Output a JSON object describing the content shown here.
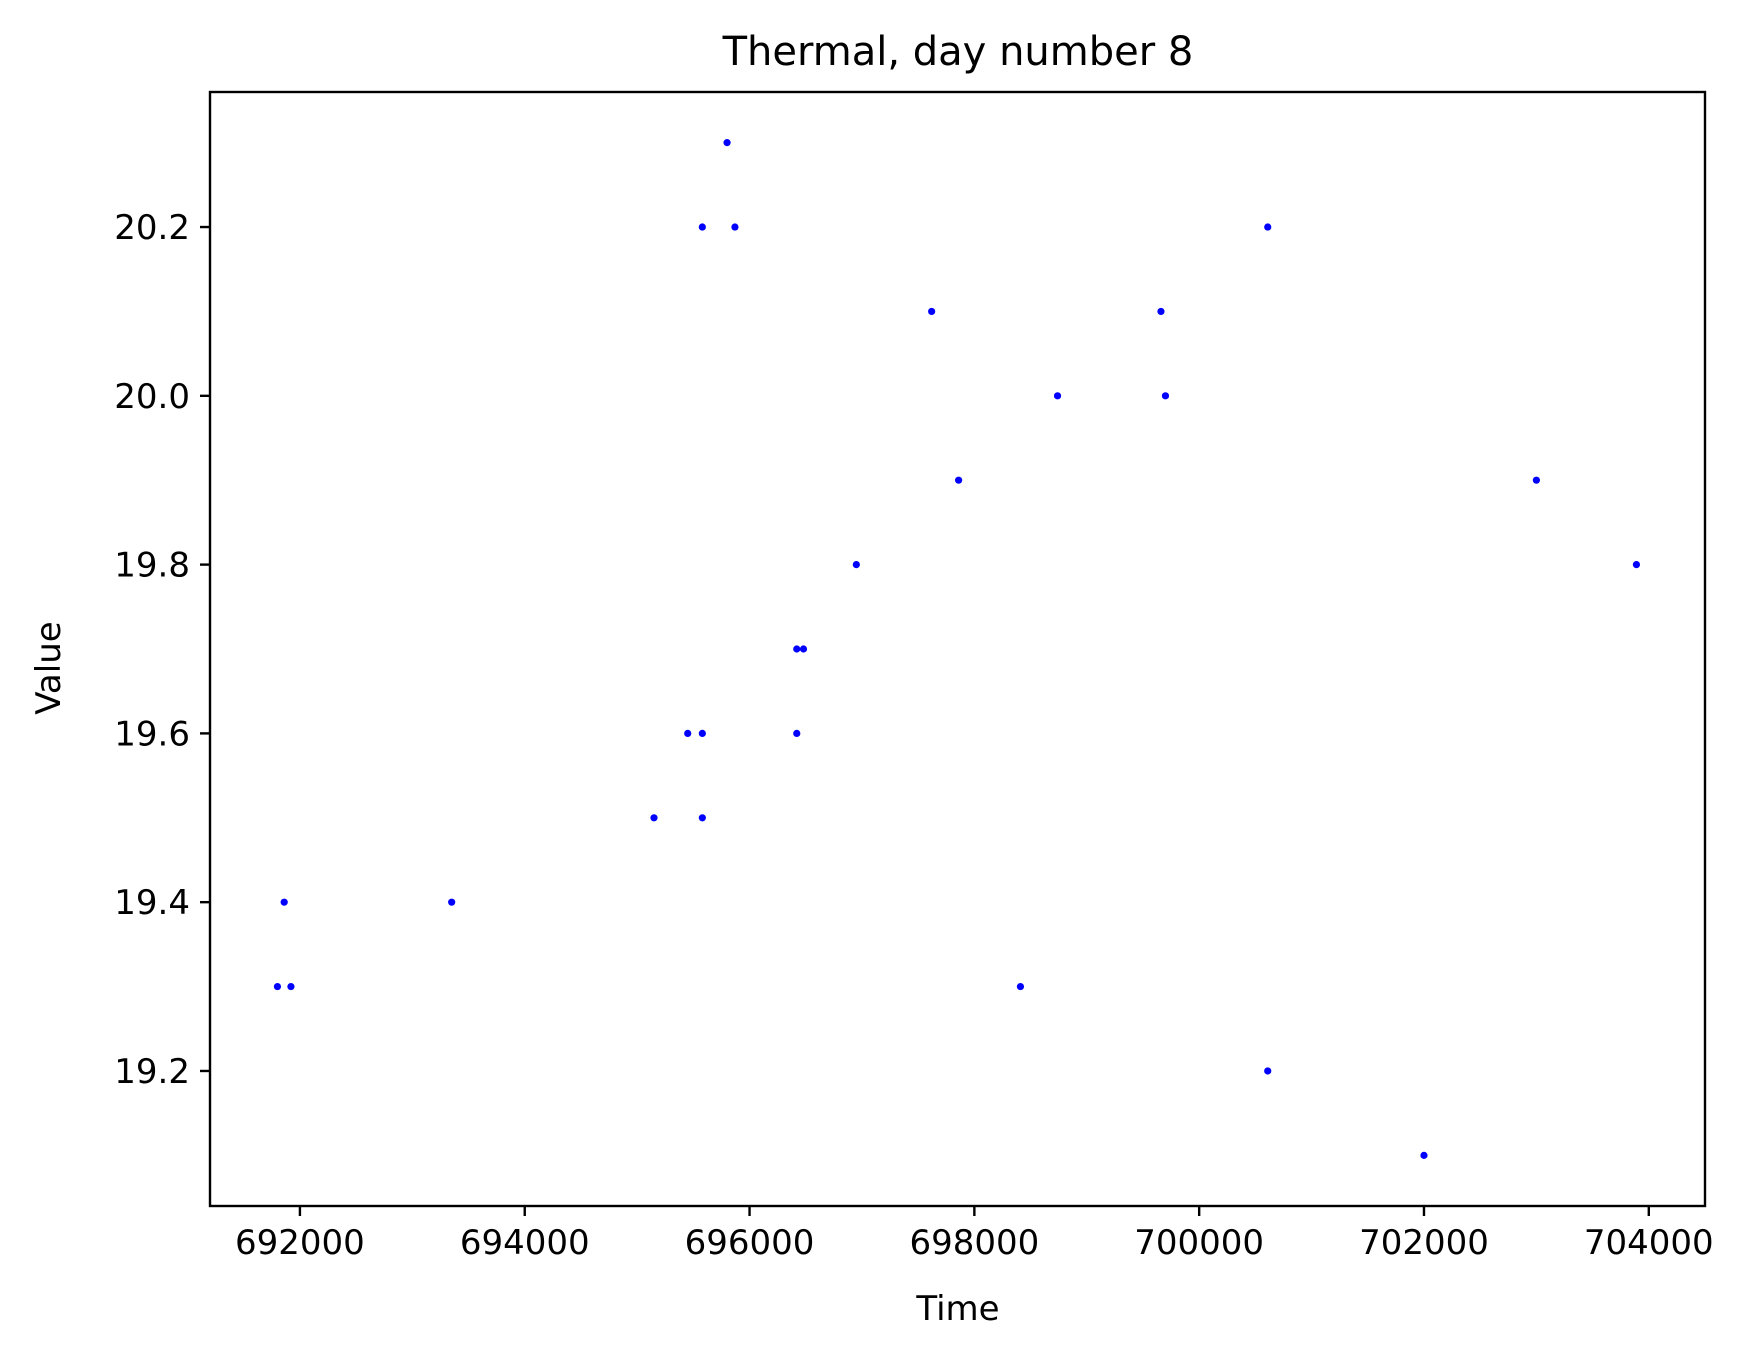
{
  "chart_data": {
    "type": "scatter",
    "title": "Thermal, day number 8",
    "xlabel": "Time",
    "ylabel": "Value",
    "xlim": [
      691200,
      704500
    ],
    "ylim": [
      19.04,
      20.36
    ],
    "xticks": [
      692000,
      694000,
      696000,
      698000,
      700000,
      702000,
      704000
    ],
    "xtick_labels": [
      "692000",
      "694000",
      "696000",
      "698000",
      "700000",
      "702000",
      "704000"
    ],
    "yticks": [
      19.2,
      19.4,
      19.6,
      19.8,
      20.0,
      20.2
    ],
    "ytick_labels": [
      "19.2",
      "19.4",
      "19.6",
      "19.8",
      "20.0",
      "20.2"
    ],
    "grid": false,
    "point_color": "#0000ff",
    "series": [
      {
        "points": [
          {
            "x": 691800,
            "y": 19.3
          },
          {
            "x": 691860,
            "y": 19.4
          },
          {
            "x": 691920,
            "y": 19.3
          },
          {
            "x": 693350,
            "y": 19.4
          },
          {
            "x": 695150,
            "y": 19.5
          },
          {
            "x": 695450,
            "y": 19.6
          },
          {
            "x": 695580,
            "y": 19.6
          },
          {
            "x": 695580,
            "y": 19.5
          },
          {
            "x": 695580,
            "y": 20.2
          },
          {
            "x": 695800,
            "y": 20.3
          },
          {
            "x": 695870,
            "y": 20.2
          },
          {
            "x": 696420,
            "y": 19.7
          },
          {
            "x": 696480,
            "y": 19.7
          },
          {
            "x": 696420,
            "y": 19.6
          },
          {
            "x": 696950,
            "y": 19.8
          },
          {
            "x": 697620,
            "y": 20.1
          },
          {
            "x": 697860,
            "y": 19.9
          },
          {
            "x": 698410,
            "y": 19.3
          },
          {
            "x": 698740,
            "y": 20.0
          },
          {
            "x": 699660,
            "y": 20.1
          },
          {
            "x": 699700,
            "y": 20.0
          },
          {
            "x": 700610,
            "y": 20.2
          },
          {
            "x": 700610,
            "y": 19.2
          },
          {
            "x": 702000,
            "y": 19.1
          },
          {
            "x": 703000,
            "y": 19.9
          },
          {
            "x": 703890,
            "y": 19.8
          }
        ]
      }
    ]
  }
}
